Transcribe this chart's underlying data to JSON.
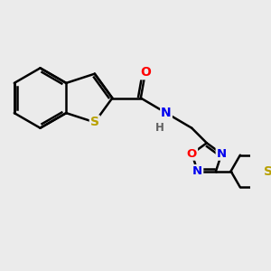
{
  "bg_color": "#ebebeb",
  "bond_color": "#000000",
  "bond_width": 1.8,
  "atom_colors": {
    "S": "#b8a000",
    "O": "#ff0000",
    "N": "#0000ee",
    "H": "#606060"
  },
  "font_size": 10,
  "fig_size": [
    3.0,
    3.0
  ],
  "dpi": 100
}
